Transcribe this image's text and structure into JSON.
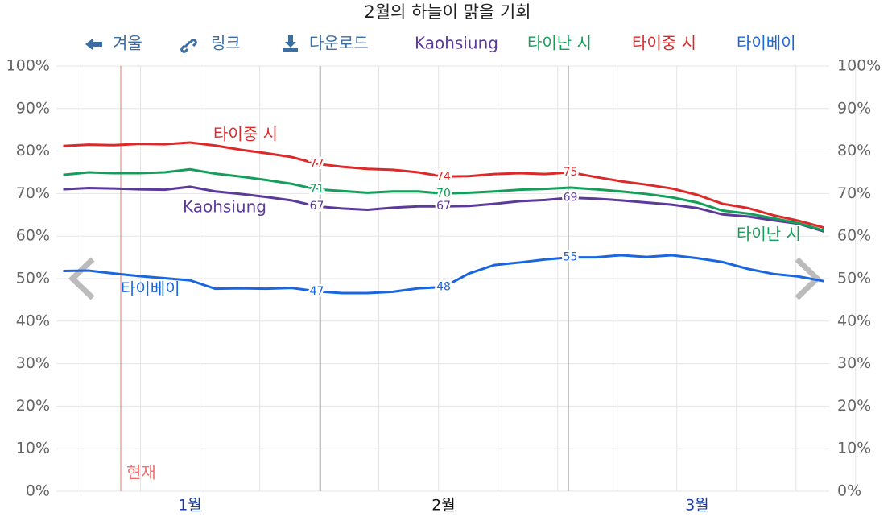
{
  "toolbar": [
    "겨울",
    "링크",
    "다운로드"
  ],
  "now_label": "현재",
  "chart_data": {
    "type": "line",
    "title": "2월의 하늘이 맑을 기회",
    "categories": [
      null,
      null,
      null,
      null,
      null,
      "1월",
      null,
      null,
      null,
      null,
      null,
      null,
      null,
      null,
      null,
      "2월",
      null,
      null,
      null,
      null,
      null,
      null,
      null,
      null,
      null,
      "3월",
      null,
      null,
      null,
      null,
      null
    ],
    "ylim": [
      0,
      100
    ],
    "yticks": [
      {
        "value": 0,
        "label": "0%"
      },
      {
        "value": 10,
        "label": "10%"
      },
      {
        "value": 20,
        "label": "20%"
      },
      {
        "value": 30,
        "label": "30%"
      },
      {
        "value": 40,
        "label": "40%"
      },
      {
        "value": 50,
        "label": "50%"
      },
      {
        "value": 60,
        "label": "60%"
      },
      {
        "value": 70,
        "label": "70%"
      },
      {
        "value": 80,
        "label": "80%"
      },
      {
        "value": 90,
        "label": "90%"
      },
      {
        "value": 100,
        "label": "100%"
      }
    ],
    "grid": true,
    "series": [
      {
        "name": "Kaohsiung",
        "color": "#5b3a9a",
        "values": [
          71.0,
          71.3,
          71.2,
          71.0,
          70.9,
          71.6,
          70.5,
          69.9,
          69.2,
          68.4,
          67,
          66.5,
          66.2,
          66.7,
          67.0,
          67,
          67.1,
          67.6,
          68.2,
          68.5,
          69,
          68.8,
          68.4,
          67.9,
          67.4,
          66.6,
          65.1,
          64.6,
          63.7,
          62.9,
          61.1
        ],
        "value_labels": [
          null,
          null,
          null,
          null,
          null,
          null,
          null,
          null,
          null,
          null,
          "67",
          null,
          null,
          null,
          null,
          "67",
          null,
          null,
          null,
          null,
          "69",
          null,
          null,
          null,
          null,
          null,
          null,
          null,
          null,
          null,
          null
        ]
      },
      {
        "name": "타이난 시",
        "color": "#159e5a",
        "values": [
          74.4,
          75.0,
          74.8,
          74.8,
          75.0,
          75.7,
          74.7,
          74.0,
          73.2,
          72.3,
          71,
          70.6,
          70.2,
          70.5,
          70.5,
          70,
          70.2,
          70.5,
          70.9,
          71.1,
          71.4,
          71.0,
          70.5,
          69.9,
          69.1,
          67.9,
          66.0,
          65.3,
          64.2,
          63.0,
          61.3
        ],
        "value_labels": [
          null,
          null,
          null,
          null,
          null,
          null,
          null,
          null,
          null,
          null,
          "71",
          null,
          null,
          null,
          null,
          "70",
          null,
          null,
          null,
          null,
          null,
          null,
          null,
          null,
          null,
          null,
          null,
          null,
          null,
          null,
          null
        ]
      },
      {
        "name": "타이중 시",
        "color": "#dc2a2a",
        "values": [
          81.2,
          81.5,
          81.4,
          81.7,
          81.6,
          82.0,
          81.3,
          80.3,
          79.5,
          78.6,
          77,
          76.3,
          75.8,
          75.6,
          75.0,
          74,
          74.1,
          74.6,
          74.8,
          74.6,
          75,
          73.9,
          72.9,
          72.1,
          71.2,
          69.7,
          67.6,
          66.6,
          64.9,
          63.6,
          62.0
        ],
        "value_labels": [
          null,
          null,
          null,
          null,
          null,
          null,
          null,
          null,
          null,
          null,
          "77",
          null,
          null,
          null,
          null,
          "74",
          null,
          null,
          null,
          null,
          "75",
          null,
          null,
          null,
          null,
          null,
          null,
          null,
          null,
          null,
          null
        ]
      },
      {
        "name": "타이베이",
        "color": "#1a66e0",
        "values": [
          51.8,
          51.9,
          51.2,
          50.6,
          50.1,
          49.6,
          47.6,
          47.7,
          47.6,
          47.8,
          47,
          46.6,
          46.6,
          46.9,
          47.7,
          48,
          51.2,
          53.2,
          53.8,
          54.5,
          55,
          55.0,
          55.5,
          55.1,
          55.5,
          54.8,
          53.9,
          52.3,
          51.1,
          50.5,
          49.4
        ],
        "value_labels": [
          null,
          null,
          null,
          null,
          null,
          null,
          null,
          null,
          null,
          null,
          "47",
          null,
          null,
          null,
          null,
          "48",
          null,
          null,
          null,
          null,
          "55",
          null,
          null,
          null,
          null,
          null,
          null,
          null,
          null,
          null,
          null
        ]
      }
    ]
  }
}
